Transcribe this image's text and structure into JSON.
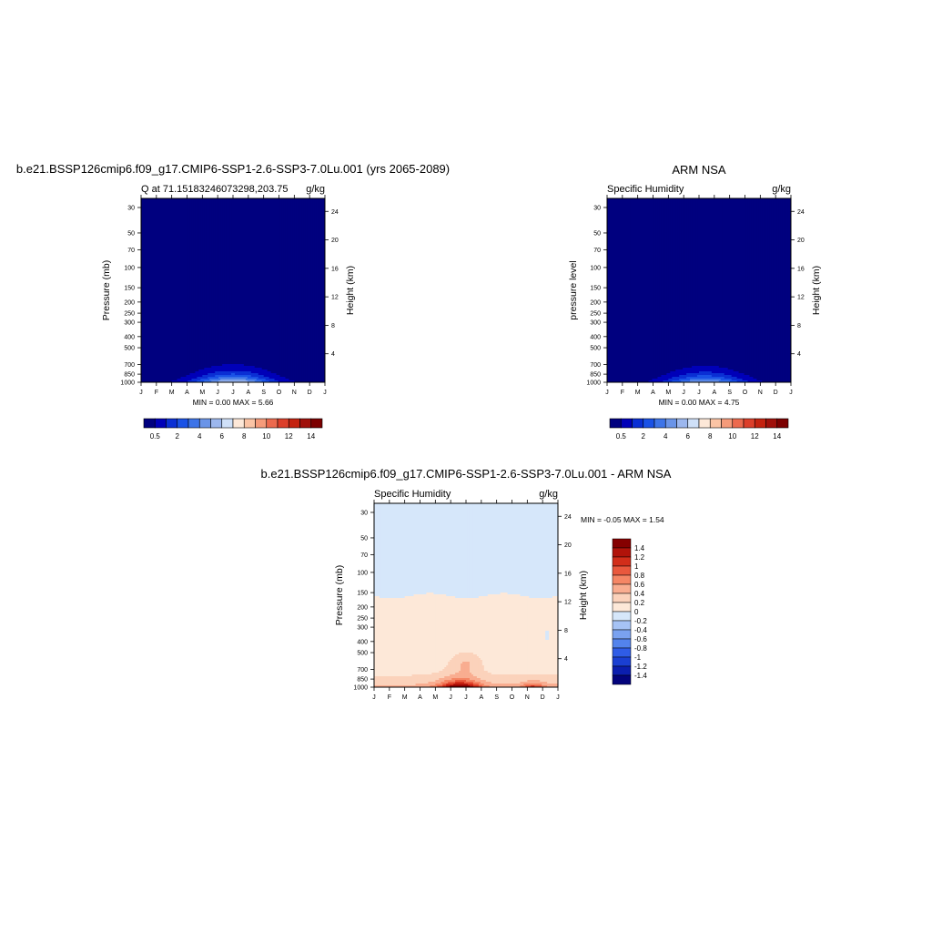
{
  "colors": {
    "abs_scale": [
      "#00007f",
      "#0000b8",
      "#0a2fd4",
      "#1a52e6",
      "#3d74e8",
      "#6a94e8",
      "#9cb7ee",
      "#cfe0f8",
      "#fde8d8",
      "#fbc4a5",
      "#f59b7a",
      "#ec6a4e",
      "#dc3f2a",
      "#c4220f",
      "#a0100a",
      "#7c0000"
    ],
    "diff_scale": [
      "#03037c",
      "#0b1eae",
      "#1a3fd2",
      "#2f5ce6",
      "#5383ec",
      "#7aa2f0",
      "#a6c3f5",
      "#d6e7fa",
      "#fde8d8",
      "#fbd2bb",
      "#f9ad90",
      "#f58665",
      "#e9583d",
      "#d22e1a",
      "#b1130a",
      "#850000"
    ]
  },
  "chart_data": [
    {
      "type": "heatmap",
      "title": "b.e21.BSSP126cmip6.f09_g17.CMIP6-SSP1-2.6-SSP3-7.0Lu.001 (yrs 2065-2089)",
      "subtitle_left": "Q at 71.15183246073298,203.75",
      "subtitle_right": "g/kg",
      "xlabel": "",
      "ylabel": "Pressure (mb)",
      "ylabel_right": "Height (km)",
      "x_ticks": [
        "J",
        "F",
        "M",
        "A",
        "M",
        "J",
        "J",
        "A",
        "S",
        "O",
        "N",
        "D",
        "J"
      ],
      "y_ticks": [
        "30",
        "50",
        "70",
        "100",
        "150",
        "200",
        "250",
        "300",
        "400",
        "500",
        "700",
        "850",
        "1000"
      ],
      "y_right_ticks": [
        "24",
        "20",
        "16",
        "12",
        "8",
        "4"
      ],
      "y_scale": "log",
      "ylim": [
        1000,
        25
      ],
      "min_max_label": "MIN =   0.00 MAX =   5.66",
      "min": 0.0,
      "max": 5.66,
      "peak_month_index": 6.0,
      "colorbar_labels": [
        "0.5",
        "2",
        "4",
        "6",
        "8",
        "10",
        "12",
        "14"
      ]
    },
    {
      "type": "heatmap",
      "title": "ARM NSA",
      "subtitle_left": "Specific Humidity",
      "subtitle_right": "g/kg",
      "xlabel": "",
      "ylabel": "pressure level",
      "ylabel_right": "Height (km)",
      "x_ticks": [
        "J",
        "F",
        "M",
        "A",
        "M",
        "J",
        "J",
        "A",
        "S",
        "O",
        "N",
        "D",
        "J"
      ],
      "y_ticks": [
        "30",
        "50",
        "70",
        "100",
        "150",
        "200",
        "250",
        "300",
        "400",
        "500",
        "700",
        "850",
        "1000"
      ],
      "y_right_ticks": [
        "24",
        "20",
        "16",
        "12",
        "8",
        "4"
      ],
      "y_scale": "log",
      "ylim": [
        1000,
        25
      ],
      "min_max_label": "MIN =   0.00 MAX =   4.75",
      "min": 0.0,
      "max": 4.75,
      "peak_month_index": 6.4,
      "colorbar_labels": [
        "0.5",
        "2",
        "4",
        "6",
        "8",
        "10",
        "12",
        "14"
      ]
    },
    {
      "type": "heatmap",
      "title": "b.e21.BSSP126cmip6.f09_g17.CMIP6-SSP1-2.6-SSP3-7.0Lu.001 - ARM NSA",
      "subtitle_left": "Specific Humidity",
      "subtitle_right": "g/kg",
      "xlabel": "",
      "ylabel": "Pressure (mb)",
      "ylabel_right": "Height (km)",
      "x_ticks": [
        "J",
        "F",
        "M",
        "A",
        "M",
        "J",
        "J",
        "A",
        "S",
        "O",
        "N",
        "D",
        "J"
      ],
      "y_ticks": [
        "30",
        "50",
        "70",
        "100",
        "150",
        "200",
        "250",
        "300",
        "400",
        "500",
        "700",
        "850",
        "1000"
      ],
      "y_right_ticks": [
        "24",
        "20",
        "16",
        "12",
        "8",
        "4"
      ],
      "y_scale": "log",
      "ylim": [
        1000,
        25
      ],
      "min_max_label": "MIN =  -0.05 MAX =   1.54",
      "min": -0.05,
      "max": 1.54,
      "colorbar_labels": [
        "1.4",
        "1.2",
        "1",
        "0.8",
        "0.6",
        "0.4",
        "0.2",
        "0",
        "-0.2",
        "-0.4",
        "-0.6",
        "-0.8",
        "-1",
        "-1.2",
        "-1.4"
      ]
    }
  ]
}
